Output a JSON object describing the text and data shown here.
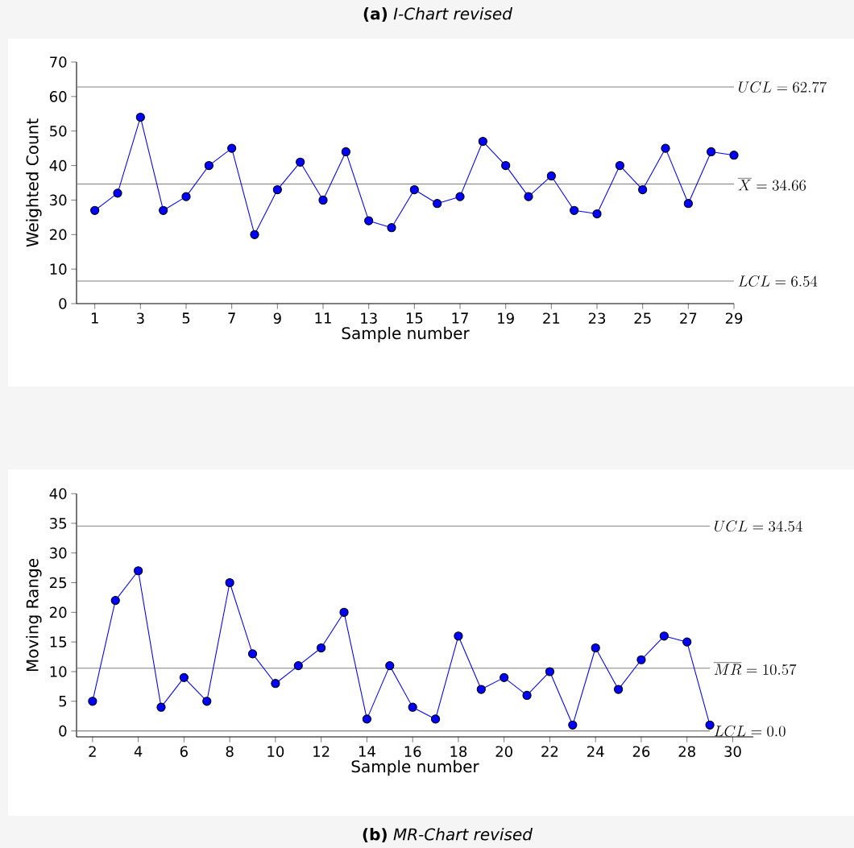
{
  "chart_data": [
    {
      "type": "line",
      "title": "**(a)** *I-Chart revised*",
      "xlabel": "Sample number",
      "ylabel": "Weighted Count",
      "x": [
        1,
        2,
        3,
        4,
        5,
        6,
        7,
        8,
        9,
        10,
        11,
        12,
        13,
        14,
        15,
        16,
        17,
        18,
        19,
        20,
        21,
        22,
        23,
        24,
        25,
        26,
        27,
        28,
        29
      ],
      "series": [
        {
          "color": "#0000ff",
          "values": [
            27,
            32,
            54,
            27,
            31,
            40,
            45,
            20,
            33,
            41,
            30,
            44,
            24,
            22,
            33,
            29,
            31,
            47,
            40,
            31,
            37,
            27,
            26,
            40,
            33,
            45,
            29,
            44,
            43
          ]
        }
      ],
      "xlim": [
        0.2,
        29
      ],
      "ylim": [
        0,
        70
      ],
      "xticks": [
        1,
        3,
        5,
        7,
        9,
        11,
        13,
        15,
        17,
        19,
        21,
        23,
        25,
        27,
        29
      ],
      "yticks": [
        0,
        10,
        20,
        30,
        40,
        50,
        60,
        70
      ],
      "marker": "circle",
      "line_style": "solid",
      "ref_lines": [
        {
          "axis": "y",
          "value": 62.77,
          "label": "UCL=62.77",
          "color": "#808080"
        },
        {
          "axis": "y",
          "value": 34.66,
          "label": "\\overline{X}=34.66",
          "color": "#808080"
        },
        {
          "axis": "y",
          "value": 6.54,
          "label": "LCL=6.54",
          "color": "#808080"
        }
      ]
    },
    {
      "type": "line",
      "title": "**(b)** *MR-Chart revised*",
      "xlabel": "Sample number",
      "ylabel": "Moving Range",
      "x": [
        2,
        3,
        4,
        5,
        6,
        7,
        8,
        9,
        10,
        11,
        12,
        13,
        14,
        15,
        16,
        17,
        18,
        19,
        20,
        21,
        22,
        23,
        24,
        25,
        26,
        27,
        28,
        29
      ],
      "series": [
        {
          "color": "#0000ff",
          "values": [
            5,
            22,
            27,
            4,
            9,
            5,
            25,
            13,
            8,
            11,
            14,
            20,
            2,
            11,
            4,
            2,
            16,
            7,
            9,
            6,
            10,
            1,
            14,
            7,
            12,
            16,
            15,
            1
          ]
        }
      ],
      "xlim": [
        1.3,
        30.9
      ],
      "ylim": [
        -1,
        40
      ],
      "xticks": [
        2,
        4,
        6,
        8,
        10,
        12,
        14,
        16,
        18,
        20,
        22,
        24,
        26,
        28,
        30
      ],
      "yticks": [
        0,
        5,
        10,
        15,
        20,
        25,
        30,
        35,
        40
      ],
      "marker": "circle",
      "line_style": "solid",
      "ref_lines": [
        {
          "axis": "y",
          "value": 34.54,
          "label": "UCL=34.54",
          "color": "#808080"
        },
        {
          "axis": "y",
          "value": 10.57,
          "label": "\\overline{MR}=10.57",
          "color": "#808080"
        },
        {
          "axis": "y",
          "value": 0.0,
          "label": "LCL=0.0",
          "color": "#808080"
        }
      ]
    }
  ]
}
